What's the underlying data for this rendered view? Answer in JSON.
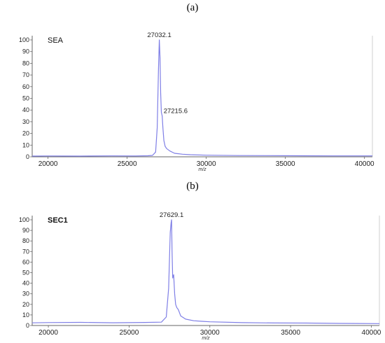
{
  "chart_data": [
    {
      "panel_label": "(a)",
      "type": "line",
      "title": "SEA",
      "title_bold": false,
      "xlabel": "m/z",
      "ylabel": "",
      "xlim": [
        19000,
        40500
      ],
      "ylim": [
        0,
        100
      ],
      "x_ticks": [
        20000,
        25000,
        30000,
        35000,
        40000
      ],
      "y_ticks": [
        0,
        10,
        20,
        30,
        40,
        50,
        60,
        70,
        80,
        90,
        100
      ],
      "line_color": "#7f7fe6",
      "peaks": [
        {
          "x": 27032.1,
          "y": 100,
          "label": "27032.1"
        },
        {
          "x": 27215.6,
          "y": 35,
          "label": "27215.6"
        }
      ],
      "series": [
        {
          "x": [
            19000,
            20000,
            22000,
            24000,
            25500,
            26300,
            26600,
            26800,
            26900,
            26980,
            27032,
            27080,
            27120,
            27160,
            27215,
            27260,
            27320,
            27400,
            27500,
            27700,
            28000,
            28500,
            29000,
            30000,
            32000,
            34000,
            36000,
            38000,
            40500
          ],
          "y": [
            0.6,
            0.7,
            0.6,
            0.8,
            0.7,
            0.9,
            1.2,
            4,
            25,
            75,
            100,
            85,
            55,
            38,
            35,
            25,
            14,
            9,
            7,
            5,
            3,
            2.2,
            1.8,
            1.4,
            1.1,
            1.0,
            0.9,
            0.8,
            0.8
          ]
        }
      ]
    },
    {
      "panel_label": "(b)",
      "type": "line",
      "title": "SEC1",
      "title_bold": true,
      "xlabel": "m/z",
      "ylabel": "",
      "xlim": [
        19000,
        40500
      ],
      "ylim": [
        0,
        100
      ],
      "x_ticks": [
        20000,
        25000,
        30000,
        35000,
        40000
      ],
      "y_ticks": [
        0,
        10,
        20,
        30,
        40,
        50,
        60,
        70,
        80,
        90,
        100
      ],
      "line_color": "#7f7fe6",
      "peaks": [
        {
          "x": 27629.1,
          "y": 100,
          "label": "27629.1"
        }
      ],
      "series": [
        {
          "x": [
            19000,
            20000,
            22000,
            24000,
            26000,
            27000,
            27300,
            27450,
            27550,
            27600,
            27629,
            27660,
            27700,
            27760,
            27820,
            27880,
            27950,
            28050,
            28200,
            28500,
            29000,
            29500,
            30000,
            32000,
            34000,
            36000,
            38000,
            40500
          ],
          "y": [
            2.5,
            2.8,
            3.0,
            2.6,
            2.9,
            3.2,
            8,
            35,
            88,
            97,
            100,
            70,
            45,
            48,
            30,
            20,
            17,
            15,
            9,
            6,
            4.5,
            4,
            3.5,
            2.7,
            2.4,
            2.3,
            2.0,
            1.8
          ]
        }
      ]
    }
  ]
}
